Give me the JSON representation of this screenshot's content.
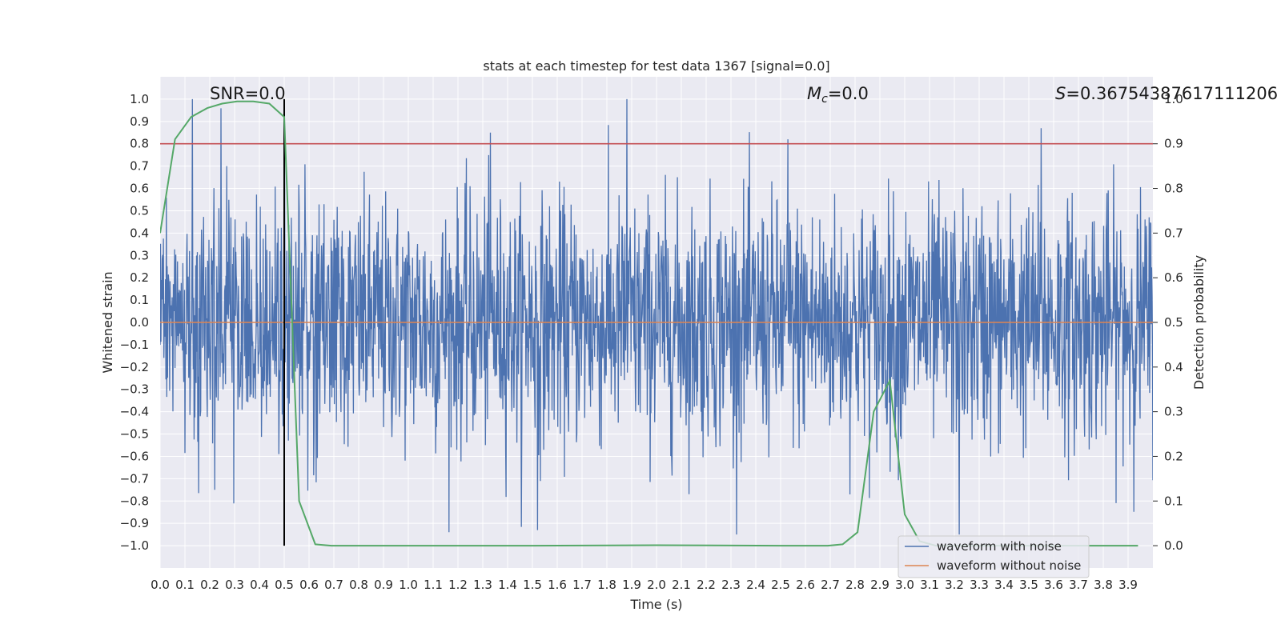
{
  "chart_data": {
    "type": "line",
    "title": "stats at each timestep for test data 1367 [signal=0.0]",
    "xlabel": "Time (s)",
    "ylabel": "Whitened strain",
    "y2label": "Detection probability",
    "xlim": [
      0.0,
      4.0
    ],
    "ylim": [
      -1.1,
      1.1
    ],
    "y2lim": [
      -0.05,
      1.05
    ],
    "x_ticks": [
      "0.0",
      "0.1",
      "0.2",
      "0.3",
      "0.4",
      "0.5",
      "0.6",
      "0.7",
      "0.8",
      "0.9",
      "1.0",
      "1.1",
      "1.2",
      "1.3",
      "1.4",
      "1.5",
      "1.6",
      "1.7",
      "1.8",
      "1.9",
      "2.0",
      "2.1",
      "2.2",
      "2.3",
      "2.4",
      "2.5",
      "2.6",
      "2.7",
      "2.8",
      "2.9",
      "3.0",
      "3.1",
      "3.2",
      "3.3",
      "3.4",
      "3.5",
      "3.6",
      "3.7",
      "3.8",
      "3.9"
    ],
    "y_ticks": [
      "1.0",
      "0.9",
      "0.8",
      "0.7",
      "0.6",
      "0.5",
      "0.4",
      "0.3",
      "0.2",
      "0.1",
      "0.0",
      "-0.1",
      "-0.2",
      "-0.3",
      "-0.4",
      "-0.5",
      "-0.6",
      "-0.7",
      "-0.8",
      "-0.9",
      "-1.0"
    ],
    "y2_ticks": [
      "1.0",
      "0.9",
      "0.8",
      "0.7",
      "0.6",
      "0.5",
      "0.4",
      "0.3",
      "0.2",
      "0.1",
      "0.0"
    ],
    "grid": true,
    "legend_position": "bottom-right",
    "annotations": {
      "snr": "SNR=0.0",
      "mc_symbol": "M",
      "mc_sub": "c",
      "mc_value": "=0.0",
      "s_symbol": "S",
      "s_value": "=0.36754387617111206"
    },
    "threshold": {
      "axis": "y",
      "value": 0.8,
      "color": "#c44e52"
    },
    "vline": {
      "x": 0.5,
      "ymin": -1.0,
      "ymax": 1.0,
      "color": "#000000"
    },
    "series": [
      {
        "name": "waveform with noise",
        "color": "#4c72b0",
        "axis": "y",
        "description_values": {
          "x_range": [
            0.0,
            4.0
          ],
          "amplitude_min": -0.95,
          "amplitude_max": 1.0,
          "peaks": [
            {
              "x": 0.13,
              "y": 1.0
            },
            {
              "x": 1.88,
              "y": 1.0
            },
            {
              "x": 1.33,
              "y": 0.85
            },
            {
              "x": 3.55,
              "y": 0.87
            },
            {
              "x": 0.5,
              "y": 0.87
            },
            {
              "x": 2.53,
              "y": 0.82
            },
            {
              "x": 1.52,
              "y": -0.93
            },
            {
              "x": 3.22,
              "y": -0.95
            },
            {
              "x": 0.22,
              "y": -0.75
            }
          ]
        }
      },
      {
        "name": "waveform without noise",
        "color": "#dd8452",
        "axis": "y",
        "values_constant": 0.0
      },
      {
        "name": "",
        "color": "#55a868",
        "axis": "y2",
        "x": [
          0.0,
          0.06,
          0.125,
          0.19,
          0.25,
          0.31,
          0.375,
          0.44,
          0.5,
          0.56,
          0.625,
          0.69,
          0.75,
          1.0,
          1.5,
          2.0,
          2.5,
          2.69,
          2.75,
          2.81,
          2.875,
          2.94,
          3.0,
          3.06,
          3.125,
          3.19,
          3.25,
          3.5,
          3.94
        ],
        "values": [
          0.7,
          0.91,
          0.96,
          0.98,
          0.99,
          0.995,
          0.995,
          0.99,
          0.96,
          0.1,
          0.003,
          0.0,
          0.0,
          0.0,
          0.0,
          0.001,
          0.0,
          0.0,
          0.003,
          0.03,
          0.3,
          0.37,
          0.07,
          0.01,
          0.0,
          0.0,
          0.0,
          0.0,
          0.0
        ]
      }
    ]
  }
}
